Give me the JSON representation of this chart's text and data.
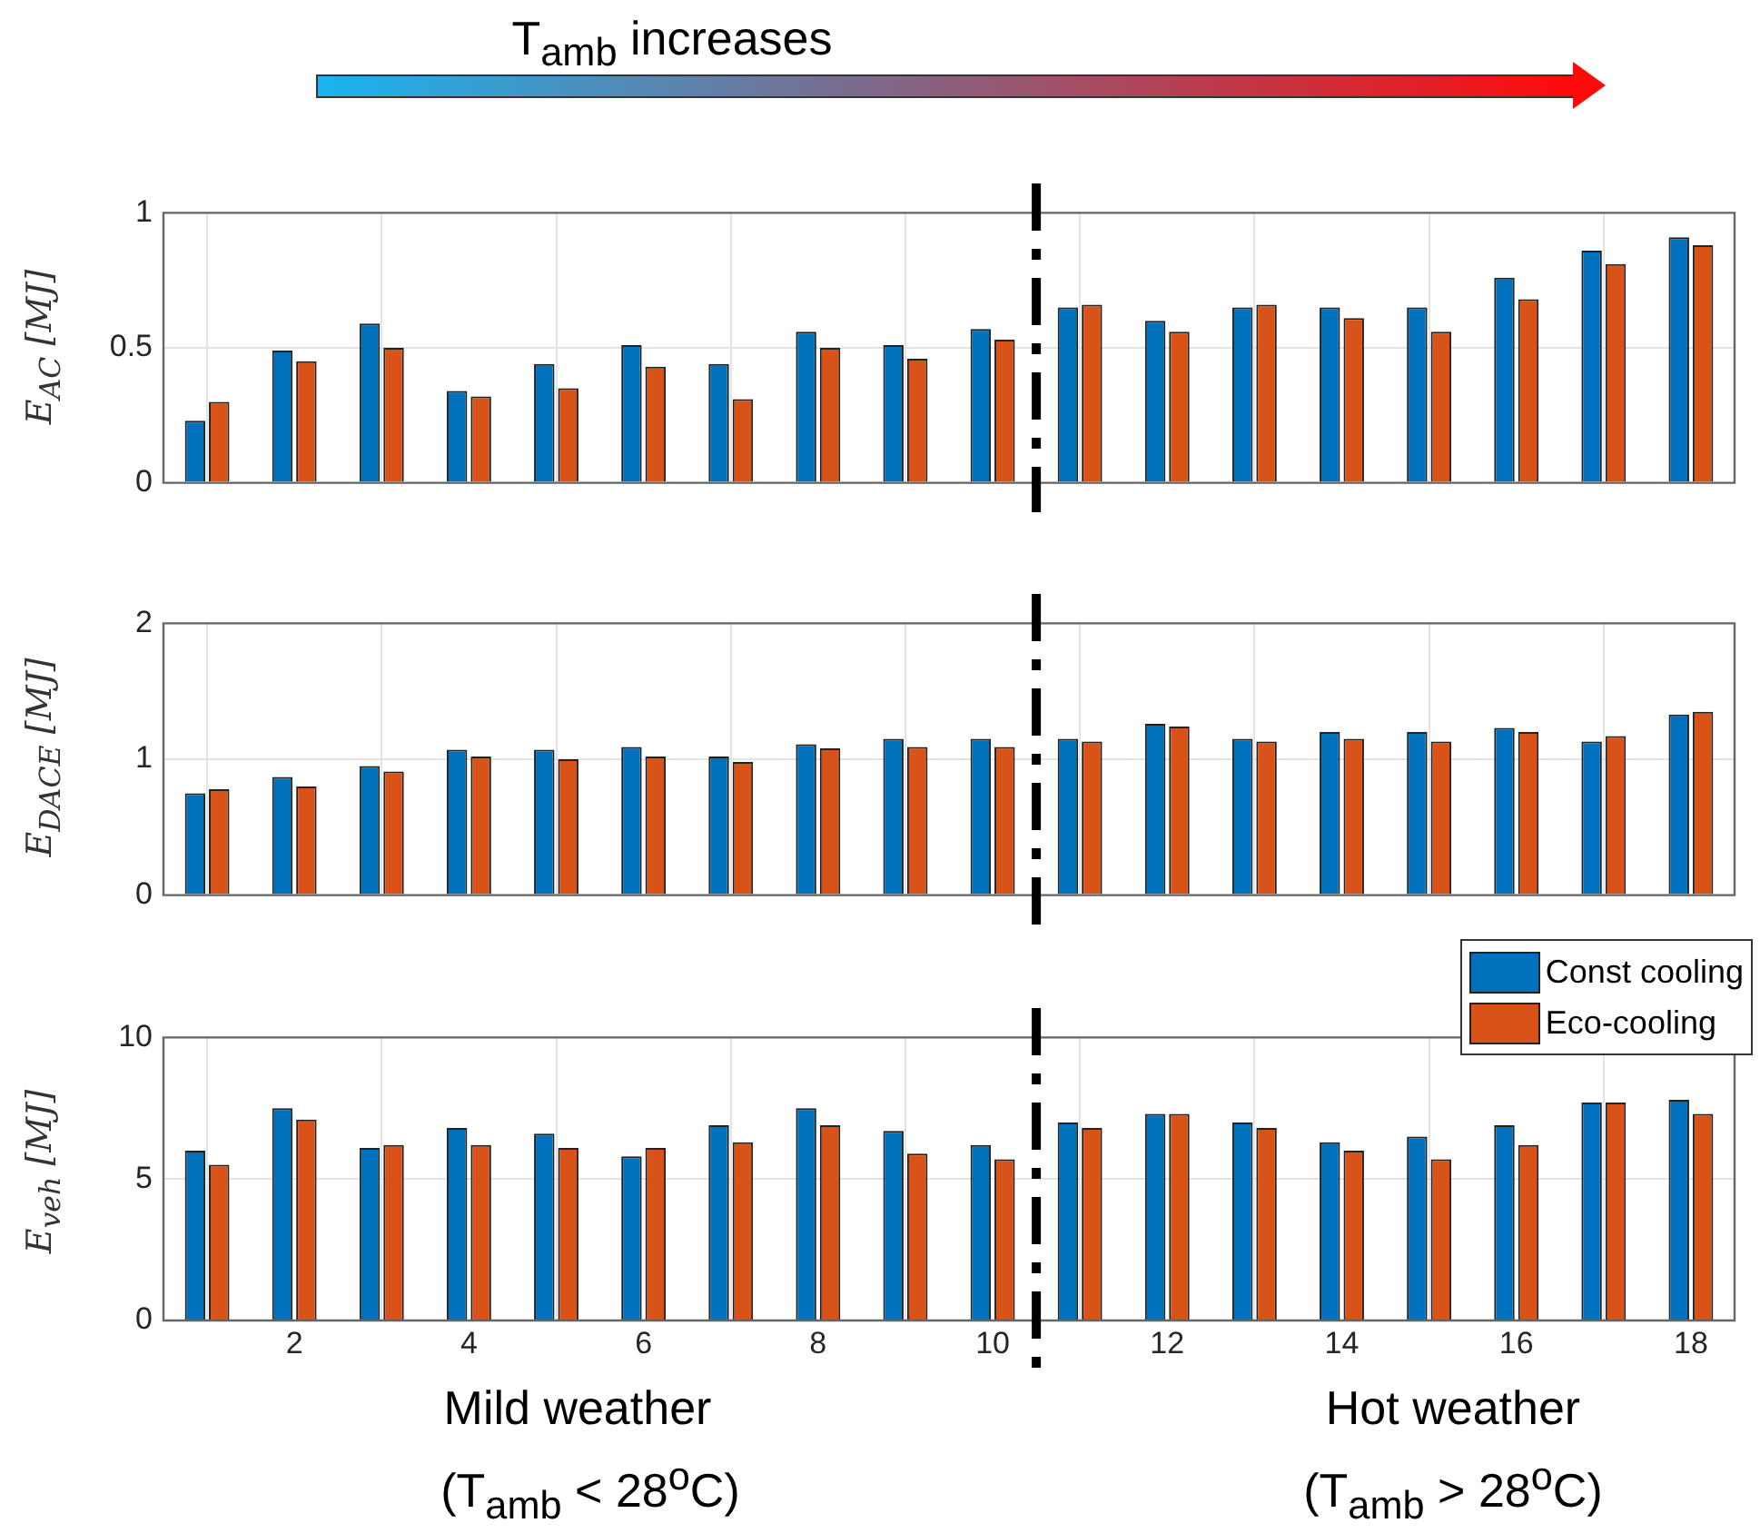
{
  "chart_data": [
    {
      "type": "bar",
      "ylabel": "E$_{AC}$ [MJ]",
      "x": [
        1,
        2,
        3,
        4,
        5,
        6,
        7,
        8,
        9,
        10,
        11,
        12,
        13,
        14,
        15,
        16,
        17,
        18
      ],
      "xlim": [
        0.5,
        18.5
      ],
      "xticks": [
        2,
        4,
        6,
        8,
        10,
        12,
        14,
        16,
        18
      ],
      "ylim": [
        0,
        1
      ],
      "yticks": [
        0,
        0.5,
        1
      ],
      "grid": true,
      "tick_labels": "y",
      "series": [
        {
          "color": "#0072bd",
          "values": [
            0.23,
            0.49,
            0.59,
            0.34,
            0.44,
            0.51,
            0.44,
            0.56,
            0.51,
            0.57,
            0.65,
            0.6,
            0.65,
            0.65,
            0.65,
            0.76,
            0.86,
            0.91
          ]
        },
        {
          "color": "#d95319",
          "values": [
            0.3,
            0.45,
            0.5,
            0.32,
            0.35,
            0.43,
            0.31,
            0.5,
            0.46,
            0.53,
            0.66,
            0.56,
            0.66,
            0.61,
            0.56,
            0.68,
            0.81,
            0.88
          ]
        }
      ],
      "ref_lines": [
        {
          "axis": "x",
          "value": 10.5,
          "color": "#000000",
          "line_style": "dashdot"
        }
      ],
      "annotations": [
        "T$_{amb}$  increases"
      ]
    },
    {
      "type": "bar",
      "ylabel": "E$_{DACE}$ [MJ]",
      "x": [
        1,
        2,
        3,
        4,
        5,
        6,
        7,
        8,
        9,
        10,
        11,
        12,
        13,
        14,
        15,
        16,
        17,
        18
      ],
      "xlim": [
        0.5,
        18.5
      ],
      "xticks": [
        2,
        4,
        6,
        8,
        10,
        12,
        14,
        16,
        18
      ],
      "ylim": [
        0,
        2
      ],
      "yticks": [
        0,
        1,
        2
      ],
      "grid": true,
      "tick_labels": "y",
      "series": [
        {
          "color": "#0072bd",
          "values": [
            0.75,
            0.87,
            0.95,
            1.07,
            1.07,
            1.09,
            1.02,
            1.11,
            1.15,
            1.15,
            1.15,
            1.26,
            1.15,
            1.2,
            1.2,
            1.23,
            1.13,
            1.33
          ]
        },
        {
          "color": "#d95319",
          "values": [
            0.78,
            0.8,
            0.91,
            1.02,
            1.0,
            1.02,
            0.98,
            1.08,
            1.09,
            1.09,
            1.13,
            1.24,
            1.13,
            1.15,
            1.13,
            1.2,
            1.17,
            1.35
          ]
        }
      ],
      "ref_lines": [
        {
          "axis": "x",
          "value": 10.5,
          "color": "#000000",
          "line_style": "dashdot"
        }
      ]
    },
    {
      "type": "bar",
      "ylabel": "E$_{veh}$ [MJ]",
      "x": [
        1,
        2,
        3,
        4,
        5,
        6,
        7,
        8,
        9,
        10,
        11,
        12,
        13,
        14,
        15,
        16,
        17,
        18
      ],
      "xlim": [
        0.5,
        18.5
      ],
      "xticks": [
        2,
        4,
        6,
        8,
        10,
        12,
        14,
        16,
        18
      ],
      "ylim": [
        0,
        10
      ],
      "yticks": [
        0,
        5,
        10
      ],
      "grid": true,
      "legend": "top right",
      "series": [
        {
          "name": "Const cooling",
          "color": "#0072bd",
          "values": [
            6.0,
            7.5,
            6.1,
            6.8,
            6.6,
            5.8,
            6.9,
            7.5,
            6.7,
            6.2,
            7.0,
            7.3,
            7.0,
            6.3,
            6.5,
            6.9,
            7.7,
            7.8
          ]
        },
        {
          "name": "Eco-cooling",
          "color": "#d95319",
          "values": [
            5.5,
            7.1,
            6.2,
            6.2,
            6.1,
            6.1,
            6.3,
            6.9,
            5.9,
            5.7,
            6.8,
            7.3,
            6.8,
            6.0,
            5.7,
            6.2,
            7.7,
            7.3
          ]
        }
      ],
      "ref_lines": [
        {
          "axis": "x",
          "value": 10.5,
          "color": "#000000",
          "line_style": "dashdot"
        }
      ],
      "annotations": [
        "Mild weather",
        "(T$_{amb}$ < 28$^{o}$C)",
        "Hot weather",
        "(T$_{amb}$ > 28$^{o}$C)"
      ]
    }
  ]
}
